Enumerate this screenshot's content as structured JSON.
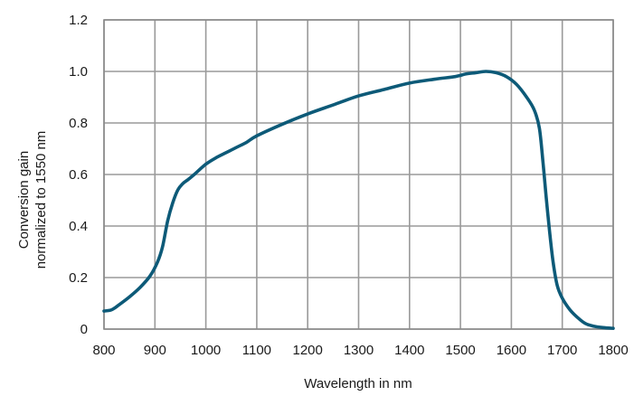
{
  "chart_data": {
    "type": "line",
    "xlabel": "Wavelength in nm",
    "ylabel_lines": [
      "Conversion gain",
      "normalized to 1550 nm"
    ],
    "xlim": [
      800,
      1800
    ],
    "ylim": [
      0,
      1.2
    ],
    "x_ticks": [
      800,
      900,
      1000,
      1100,
      1200,
      1300,
      1400,
      1500,
      1600,
      1700,
      1800
    ],
    "x_tick_labels": [
      "800",
      "900",
      "1000",
      "1100",
      "1200",
      "1300",
      "1400",
      "1500",
      "1600",
      "1700",
      "1800"
    ],
    "y_ticks": [
      0,
      0.2,
      0.4,
      0.6,
      0.8,
      1.0,
      1.2
    ],
    "y_tick_labels": [
      "0",
      "0.2",
      "0.4",
      "0.6",
      "0.8",
      "1.0",
      "1.2"
    ],
    "grid": true,
    "line_color": "#0d5a78",
    "series": [
      {
        "x": [
          800,
          815,
          830,
          850,
          870,
          890,
          905,
          915,
          925,
          935,
          945,
          955,
          965,
          980,
          1000,
          1020,
          1040,
          1060,
          1080,
          1100,
          1150,
          1200,
          1250,
          1300,
          1350,
          1400,
          1450,
          1490,
          1510,
          1530,
          1550,
          1570,
          1590,
          1610,
          1630,
          1645,
          1655,
          1662,
          1668,
          1675,
          1682,
          1690,
          1700,
          1715,
          1730,
          1745,
          1760,
          1780,
          1800
        ],
        "y": [
          0.07,
          0.075,
          0.095,
          0.125,
          0.16,
          0.205,
          0.26,
          0.32,
          0.42,
          0.49,
          0.54,
          0.565,
          0.58,
          0.605,
          0.64,
          0.665,
          0.685,
          0.705,
          0.725,
          0.75,
          0.795,
          0.835,
          0.87,
          0.905,
          0.93,
          0.955,
          0.97,
          0.98,
          0.99,
          0.995,
          1.0,
          0.995,
          0.98,
          0.95,
          0.9,
          0.85,
          0.78,
          0.65,
          0.52,
          0.38,
          0.26,
          0.17,
          0.12,
          0.075,
          0.045,
          0.022,
          0.012,
          0.006,
          0.003
        ]
      }
    ]
  }
}
